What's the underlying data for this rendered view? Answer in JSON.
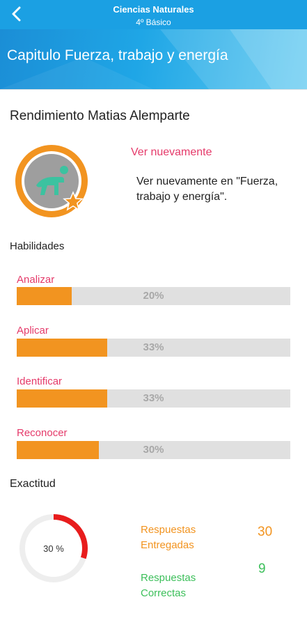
{
  "header": {
    "title": "Ciencias Naturales",
    "subtitle": "4º Básico",
    "back_icon": "chevron-left-icon"
  },
  "banner": {
    "title": "Capitulo Fuerza, trabajo y energía"
  },
  "performance": {
    "title": "Rendimiento Matias Alemparte",
    "badge_icon": "crawling-person-icon",
    "badge_star_icon": "star-icon",
    "link_label": "Ver nuevamente",
    "description": "Ver nuevamente en \"Fuerza, trabajo y energía\"."
  },
  "skills": {
    "title": "Habilidades",
    "items": [
      {
        "label": "Analizar",
        "value": 20,
        "display": "20%"
      },
      {
        "label": "Aplicar",
        "value": 33,
        "display": "33%"
      },
      {
        "label": "Identificar",
        "value": 33,
        "display": "33%"
      },
      {
        "label": "Reconocer",
        "value": 30,
        "display": "30%"
      }
    ]
  },
  "accuracy": {
    "title": "Exactitud",
    "percent": 30,
    "percent_label": "30 %",
    "delivered_label": "Respuestas Entregadas",
    "delivered_value": "30",
    "correct_label": "Respuestas Correctas",
    "correct_value": "9"
  },
  "colors": {
    "accent": "#1ba0e3",
    "orange": "#f29420",
    "pink": "#e53a6a",
    "green": "#3cbf5a",
    "red": "#e81c1c"
  }
}
